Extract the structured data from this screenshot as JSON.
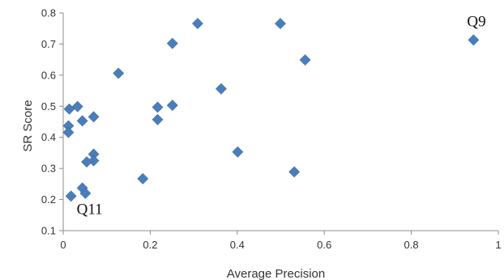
{
  "chart_data": {
    "type": "scatter",
    "title": "",
    "xlabel": "Average Precision",
    "ylabel": "SR Score",
    "xlim": [
      0,
      1
    ],
    "ylim": [
      0.1,
      0.8
    ],
    "xticks": [
      "0",
      "0.2",
      "0.4",
      "0.6",
      "0.8",
      "1"
    ],
    "yticks": [
      "0.1",
      "0.2",
      "0.3",
      "0.4",
      "0.5",
      "0.6",
      "0.7",
      "0.8"
    ],
    "grid": false,
    "marker": "diamond",
    "marker_color": "#4a7ebb",
    "points": [
      {
        "x": 0.943,
        "y": 0.713
      },
      {
        "x": 0.499,
        "y": 0.766
      },
      {
        "x": 0.309,
        "y": 0.766
      },
      {
        "x": 0.251,
        "y": 0.702
      },
      {
        "x": 0.556,
        "y": 0.649
      },
      {
        "x": 0.127,
        "y": 0.606
      },
      {
        "x": 0.363,
        "y": 0.556
      },
      {
        "x": 0.251,
        "y": 0.503
      },
      {
        "x": 0.217,
        "y": 0.497
      },
      {
        "x": 0.217,
        "y": 0.457
      },
      {
        "x": 0.033,
        "y": 0.499
      },
      {
        "x": 0.014,
        "y": 0.491
      },
      {
        "x": 0.07,
        "y": 0.466
      },
      {
        "x": 0.044,
        "y": 0.453
      },
      {
        "x": 0.012,
        "y": 0.437
      },
      {
        "x": 0.012,
        "y": 0.416
      },
      {
        "x": 0.401,
        "y": 0.353
      },
      {
        "x": 0.07,
        "y": 0.346
      },
      {
        "x": 0.07,
        "y": 0.325
      },
      {
        "x": 0.054,
        "y": 0.321
      },
      {
        "x": 0.531,
        "y": 0.289
      },
      {
        "x": 0.183,
        "y": 0.267
      },
      {
        "x": 0.044,
        "y": 0.237
      },
      {
        "x": 0.051,
        "y": 0.22
      },
      {
        "x": 0.018,
        "y": 0.211
      }
    ],
    "annotations": [
      {
        "text": "Q9",
        "x": 0.943,
        "y": 0.713
      },
      {
        "text": "Q11",
        "x": 0.018,
        "y": 0.211
      }
    ]
  }
}
